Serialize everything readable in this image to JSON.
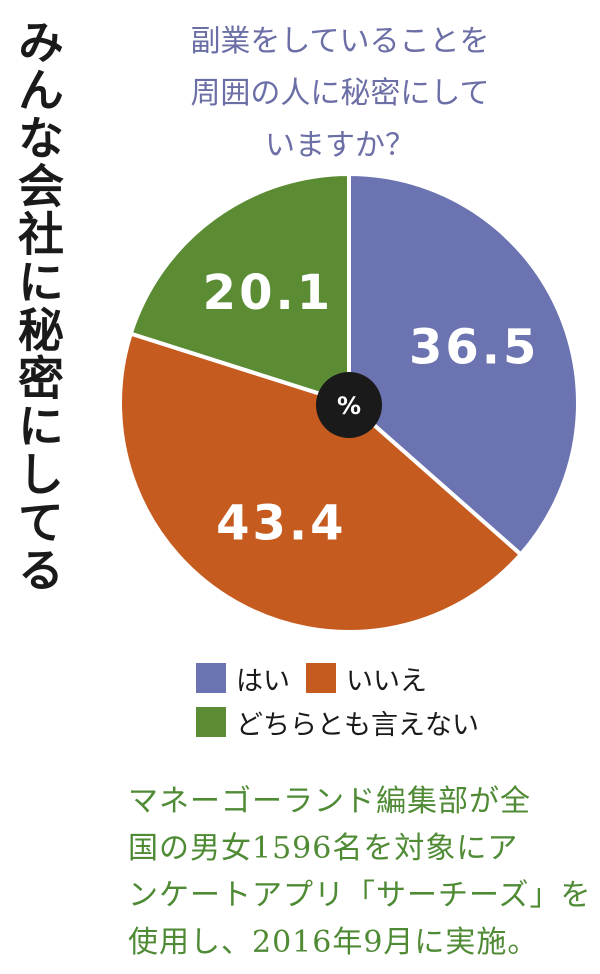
{
  "side_title": "みんな会社に秘密にしてる",
  "question_lines": [
    "副業をしていることを",
    "周囲の人に秘密にして",
    "いますか？"
  ],
  "unit": "%",
  "chart_data": {
    "type": "pie",
    "categories": [
      "はい",
      "いいえ",
      "どちらとも言えない"
    ],
    "values": [
      36.5,
      43.4,
      20.1
    ],
    "value_labels": [
      "36.5",
      "43.4",
      "20.1"
    ],
    "colors": [
      "#6b73b1",
      "#c65b1f",
      "#5b8c34"
    ],
    "title": "副業をしていることを周囲の人に秘密にしていますか？",
    "center_label": "%"
  },
  "legend": {
    "items": [
      {
        "label": "はい",
        "color": "#6b73b1"
      },
      {
        "label": "いいえ",
        "color": "#c65b1f"
      },
      {
        "label": "どちらとも言えない",
        "color": "#5b8c34"
      }
    ]
  },
  "note_lines": [
    "マネーゴーランド編集部が全",
    "国の男女1596名を対象にア",
    "ンケートアプリ「サーチーズ」を",
    "使用し、2016年9月に実施。"
  ]
}
